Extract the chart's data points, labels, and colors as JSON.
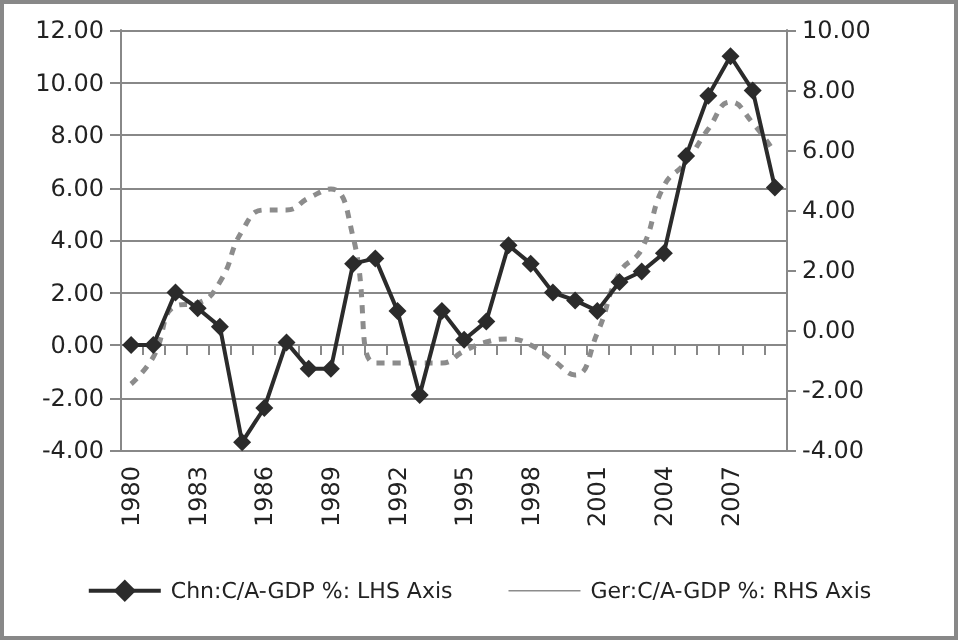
{
  "chart_data": {
    "type": "line",
    "categories": [
      "1980",
      null,
      null,
      "1983",
      null,
      null,
      "1986",
      null,
      null,
      "1989",
      null,
      null,
      "1992",
      null,
      null,
      "1995",
      null,
      null,
      "1998",
      null,
      null,
      "2001",
      null,
      null,
      "2004",
      null,
      null,
      "2007",
      null,
      null
    ],
    "series": [
      {
        "name": "Chn:C/A-GDP %: LHS Axis",
        "color": "#2b2b2b",
        "marker": "diamond",
        "line_style": "solid",
        "values": [
          0,
          0,
          2.0,
          1.4,
          0.7,
          -3.7,
          -2.4,
          0.1,
          -0.9,
          -0.9,
          3.1,
          3.3,
          1.3,
          -1.9,
          1.3,
          0.2,
          0.9,
          3.8,
          3.1,
          2.0,
          1.7,
          1.3,
          2.4,
          2.8,
          3.5,
          7.2,
          9.5,
          11.0,
          9.7,
          6.0
        ]
      },
      {
        "name": "Ger:C/A-GDP %: RHS Axis",
        "color": "#8c8c8c",
        "marker": "none",
        "line_style": "dashed",
        "axis": "y2",
        "values": [
          -1.8,
          -0.9,
          0.8,
          0.9,
          1.6,
          3.3,
          4.0,
          4.0,
          4.4,
          4.7,
          3.1,
          -1.1,
          -1.1,
          -1.1,
          -1.1,
          -0.7,
          -0.4,
          -0.3,
          -0.5,
          -1.0,
          -1.5,
          -0.1,
          1.9,
          2.7,
          4.8,
          5.6,
          6.7,
          7.6,
          6.9,
          5.9
        ]
      }
    ],
    "ylim": [
      -4,
      12
    ],
    "yticks": [
      {
        "value": -4,
        "label": "-4.00"
      },
      {
        "value": -2,
        "label": "-2.00"
      },
      {
        "value": 0,
        "label": "0.00"
      },
      {
        "value": 2,
        "label": "2.00"
      },
      {
        "value": 4,
        "label": "4.00"
      },
      {
        "value": 6,
        "label": "6.00"
      },
      {
        "value": 8,
        "label": "8.00"
      },
      {
        "value": 10,
        "label": "10.00"
      },
      {
        "value": 12,
        "label": "12.00"
      }
    ],
    "y2lim": [
      -4,
      10
    ],
    "y2ticks": [
      {
        "value": -4,
        "label": "-4.00"
      },
      {
        "value": -2,
        "label": "-2.00"
      },
      {
        "value": 0,
        "label": "0.00"
      },
      {
        "value": 2,
        "label": "2.00"
      },
      {
        "value": 4,
        "label": "4.00"
      },
      {
        "value": 6,
        "label": "6.00"
      },
      {
        "value": 8,
        "label": "8.00"
      },
      {
        "value": 10,
        "label": "10.00"
      }
    ],
    "grid": "y",
    "legend": "bottom"
  }
}
